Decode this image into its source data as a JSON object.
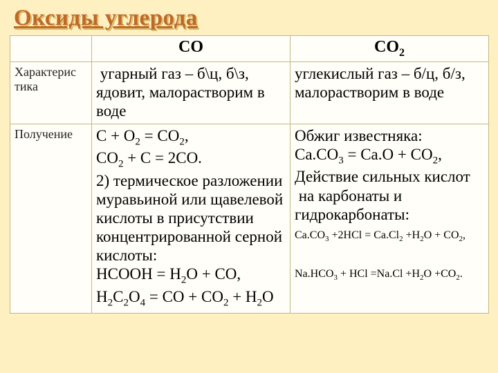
{
  "title": "Оксиды углерода",
  "colors": {
    "slide_bg": "#fff0c2",
    "cell_bg": "#fffef8",
    "border": "#c0b880",
    "title_color": "#c06828"
  },
  "typography": {
    "title_fontsize": 33,
    "header_fontsize": 24,
    "body_fontsize": 23,
    "rowheader_fontsize": 18,
    "small_fontsize": 16,
    "font_family": "Times New Roman"
  },
  "columns": {
    "left_header_html": "СО",
    "right_header_html": "СО<span class=\"sub\">2</span>"
  },
  "rows": [
    {
      "label": "Характерис\nтика",
      "left_html": "&nbsp;угарный газ – б\\ц, б\\з, ядовит, малорастворим в воде",
      "right_html": "углекислый газ – б/ц, б/з, малорастворим в воде"
    },
    {
      "label": "Получение",
      "left_html": "C + O<span class=\"sub\">2</span> = CO<span class=\"sub\">2</span>,<br>CO<span class=\"sub\">2</span> + C = 2CO.<br>2) термическое разложении муравьиной или щавелевой кислоты в присутствии концентрированной серной кислоты:<br>HCOOH = H<span class=\"sub\">2</span>O + CO,<br>H<span class=\"sub\">2</span>C<span class=\"sub\">2</span>O<span class=\"sub\">4</span> = CO + CO<span class=\"sub\">2</span> + H<span class=\"sub\">2</span>O",
      "right_html": "Обжиг известняка:<br>Ca.CO<span class=\"sub\">3</span> = Ca.O + CO<span class=\"sub\">2</span>,<br>Действие сильных кислот &nbsp;на карбонаты и гидрокарбонаты:<br><span class=\"small\">Ca.CO<span class=\"sub\">3</span> +2HCl = Ca.Cl<span class=\"sub\">2</span> +H<span class=\"sub\">2</span>O + CO<span class=\"sub\">2</span>,<br><br>Na.HCO<span class=\"sub\">3</span> + HCl =Na.Cl +H<span class=\"sub\">2</span>O +CO<span class=\"sub\">2</span>.</span>"
    }
  ]
}
